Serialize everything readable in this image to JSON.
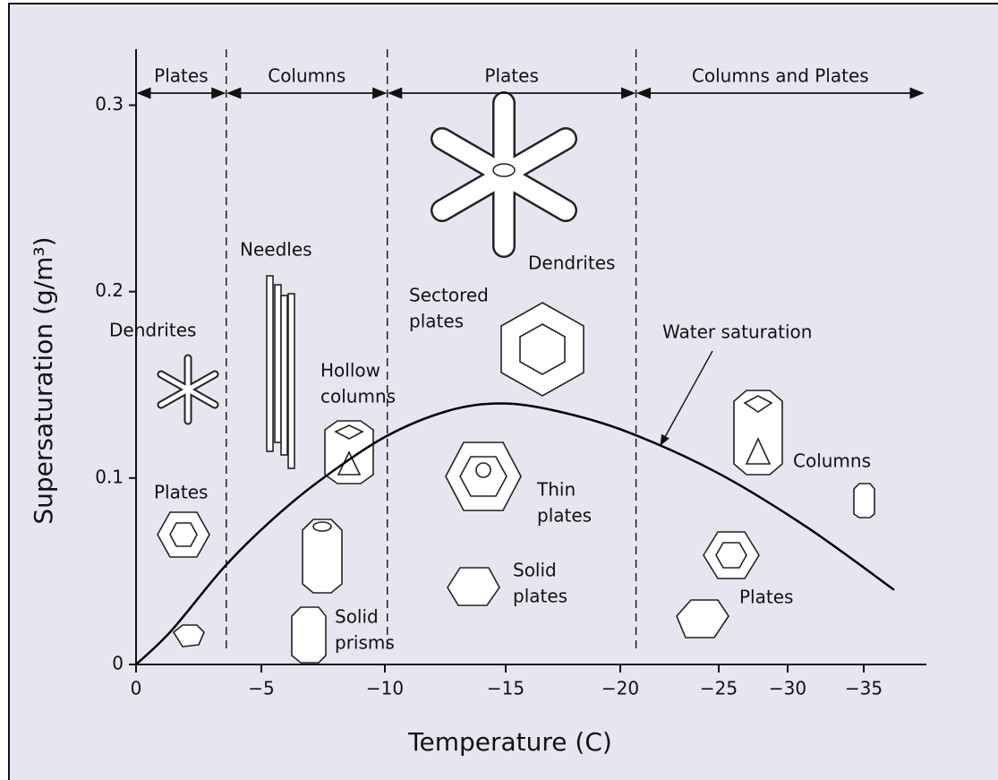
{
  "chart_data": {
    "type": "line",
    "x_label": "Temperature (C)",
    "y_label": "Supersaturation (g/m³)",
    "x": [
      0,
      -1.4,
      -3.5,
      -5.3,
      -7.3,
      -10,
      -12.6,
      -14.8,
      -17.2,
      -20.3,
      -24.9,
      -31.2,
      -37
    ],
    "series": [
      {
        "name": "Water saturation",
        "color": "#000000",
        "values": [
          0,
          0.018,
          0.052,
          0.076,
          0.098,
          0.122,
          0.136,
          0.14,
          0.136,
          0.125,
          0.103,
          0.074,
          0.04
        ]
      }
    ],
    "xlim": [
      0,
      -39
    ],
    "ylim": [
      0,
      0.33
    ],
    "xticks": [
      0,
      {
        "value": -5,
        "label": "−5"
      },
      {
        "value": -10,
        "label": "−10"
      },
      {
        "value": -15,
        "label": "−15"
      },
      {
        "value": -20,
        "label": "−20"
      },
      {
        "value": -25,
        "label": "−25"
      },
      {
        "value": -30,
        "label": "−30"
      },
      {
        "value": -35,
        "label": "−35"
      }
    ],
    "yticks": [
      0,
      0.1,
      0.2,
      0.3
    ],
    "habit_regions": [
      {
        "name": "Plates",
        "range": [
          0,
          -3.6
        ]
      },
      {
        "name": "Columns",
        "range": [
          -3.6,
          -10.1
        ]
      },
      {
        "name": "Plates",
        "range": [
          -10.1,
          -20.8
        ]
      },
      {
        "name": "Columns and Plates",
        "range": [
          -20.8,
          -39
        ]
      }
    ],
    "annotations": [
      {
        "lines": [
          "Needles"
        ]
      },
      {
        "lines": [
          "Dendrites"
        ]
      },
      {
        "lines": [
          "Plates"
        ]
      },
      {
        "lines": [
          "Hollow",
          "columns"
        ]
      },
      {
        "lines": [
          "Solid",
          "prisms"
        ]
      },
      {
        "lines": [
          "Sectored",
          "plates"
        ]
      },
      {
        "lines": [
          "Dendrites"
        ]
      },
      {
        "lines": [
          "Thin",
          "plates"
        ]
      },
      {
        "lines": [
          "Solid",
          "plates"
        ]
      },
      {
        "lines": [
          "Columns"
        ]
      },
      {
        "lines": [
          "Plates"
        ]
      }
    ]
  }
}
